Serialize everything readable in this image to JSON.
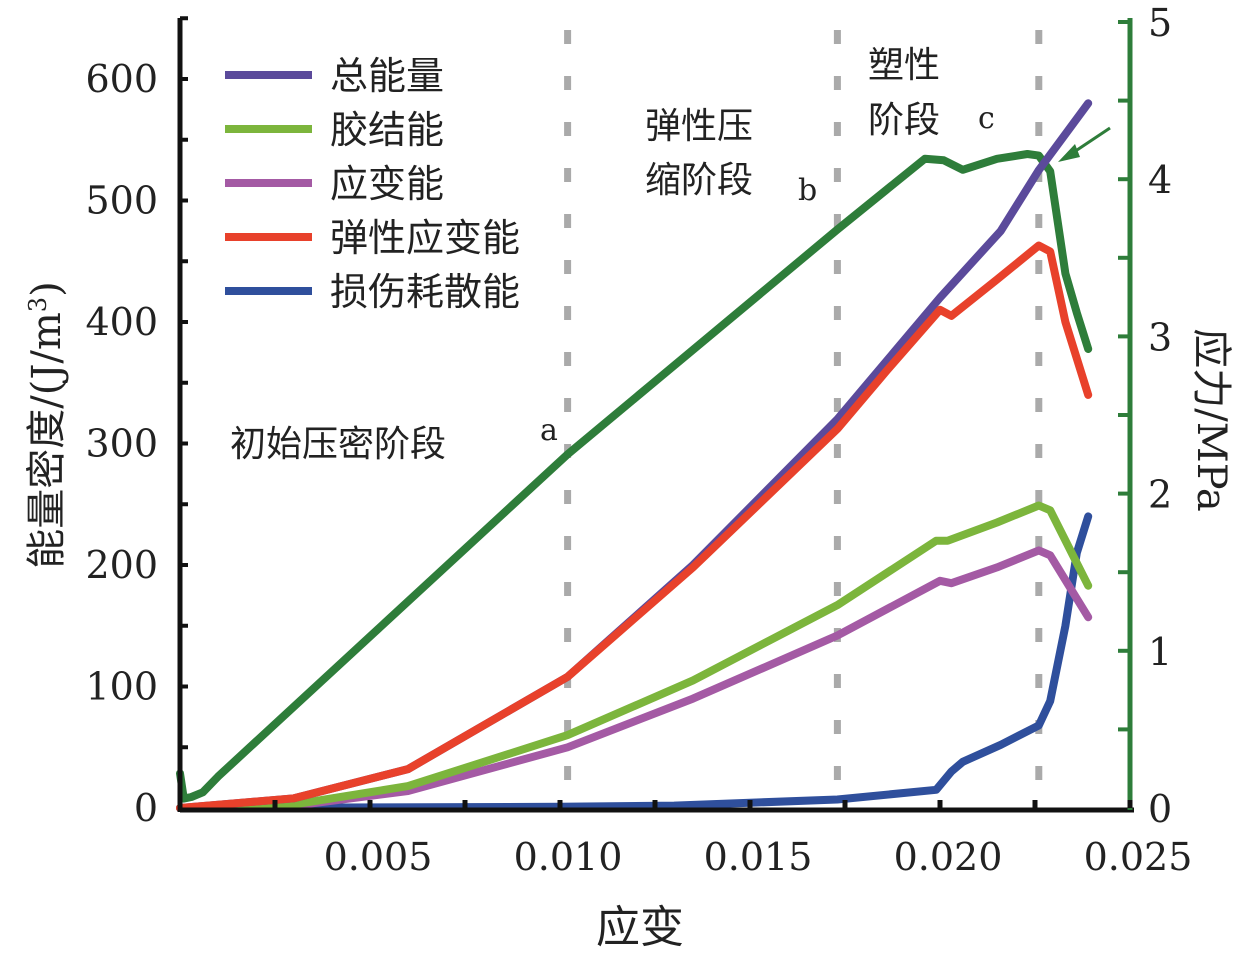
{
  "chart_data": {
    "type": "line",
    "xlabel": "应变",
    "ylabel_left": "能量密度/(J/m³)",
    "ylabel_left_parts": {
      "main": "能量密度/(J/m",
      "sup": "3",
      "end": ")"
    },
    "ylabel_right": "应力/MPa",
    "xlim": [
      0,
      0.025
    ],
    "ylim_left": [
      0,
      650
    ],
    "ylim_right": [
      0,
      5
    ],
    "x_ticks": [
      "0.005",
      "0.010",
      "0.015",
      "0.020",
      "0.025"
    ],
    "x_tick_values": [
      0.005,
      0.01,
      0.015,
      0.02,
      0.025
    ],
    "y_left_ticks": [
      "0",
      "100",
      "200",
      "300",
      "400",
      "500",
      "600"
    ],
    "y_left_tick_values": [
      0,
      100,
      200,
      300,
      400,
      500,
      600
    ],
    "y_right_ticks": [
      "0",
      "1",
      "2",
      "3",
      "4",
      "5"
    ],
    "y_right_tick_values": [
      0,
      1,
      2,
      3,
      4,
      5
    ],
    "grid": false,
    "legend_position": "top-left",
    "stage_lines": [
      0.0102,
      0.0173,
      0.0226
    ],
    "annotations": {
      "stage_a": "初始压密阶段",
      "label_a": "a",
      "stage_b_line1": "弹性压",
      "stage_b_line2": "缩阶段",
      "label_b": "b",
      "stage_c_line1": "塑性",
      "stage_c_line2": "阶段",
      "label_c": "c"
    },
    "series": [
      {
        "name": "总能量",
        "axis": "left",
        "color": "#5b4a9b",
        "x": [
          0,
          0.003,
          0.006,
          0.0102,
          0.0135,
          0.0173,
          0.02,
          0.0216,
          0.0226,
          0.0239
        ],
        "y": [
          0,
          8,
          32,
          108,
          200,
          320,
          420,
          475,
          525,
          580
        ]
      },
      {
        "name": "胶结能",
        "axis": "left",
        "color": "#7cb53c",
        "x": [
          0,
          0.003,
          0.006,
          0.0102,
          0.0135,
          0.0173,
          0.0199,
          0.0202,
          0.0215,
          0.0226,
          0.0229,
          0.0239
        ],
        "y": [
          0,
          3,
          18,
          60,
          105,
          167,
          220,
          220,
          235,
          249,
          245,
          183
        ]
      },
      {
        "name": "应变能",
        "axis": "left",
        "color": "#a45aa4",
        "x": [
          0,
          0.003,
          0.006,
          0.0102,
          0.0135,
          0.0173,
          0.02,
          0.0203,
          0.0215,
          0.0226,
          0.0229,
          0.0239
        ],
        "y": [
          0,
          2,
          14,
          50,
          90,
          142,
          187,
          185,
          198,
          212,
          208,
          157
        ]
      },
      {
        "name": "弹性应变能",
        "axis": "left",
        "color": "#e8412b",
        "x": [
          0,
          0.003,
          0.006,
          0.0102,
          0.0135,
          0.0173,
          0.0186,
          0.02,
          0.0203,
          0.0215,
          0.0226,
          0.0229,
          0.0233,
          0.0239
        ],
        "y": [
          0,
          8,
          32,
          108,
          198,
          312,
          360,
          410,
          405,
          435,
          463,
          458,
          400,
          340
        ]
      },
      {
        "name": "损伤耗散能",
        "axis": "left",
        "color": "#2f4f9c",
        "x": [
          0,
          0.01,
          0.013,
          0.0173,
          0.0199,
          0.0203,
          0.0206,
          0.0216,
          0.0226,
          0.0229,
          0.0233,
          0.0236,
          0.0239
        ],
        "y": [
          0,
          1,
          2,
          7,
          15,
          30,
          38,
          52,
          68,
          88,
          150,
          210,
          240
        ]
      },
      {
        "name": "应力",
        "axis": "right",
        "color": "#2e7d3a",
        "x": [
          0,
          0.0001,
          0.0003,
          0.0006,
          0.001,
          0.0102,
          0.0173,
          0.0196,
          0.0201,
          0.0206,
          0.0215,
          0.0223,
          0.0226,
          0.0229,
          0.0233,
          0.0236,
          0.0239
        ],
        "y": [
          0.22,
          0.06,
          0.07,
          0.1,
          0.2,
          2.25,
          3.68,
          4.13,
          4.12,
          4.06,
          4.13,
          4.16,
          4.15,
          4.05,
          3.4,
          3.15,
          2.92
        ]
      }
    ]
  }
}
